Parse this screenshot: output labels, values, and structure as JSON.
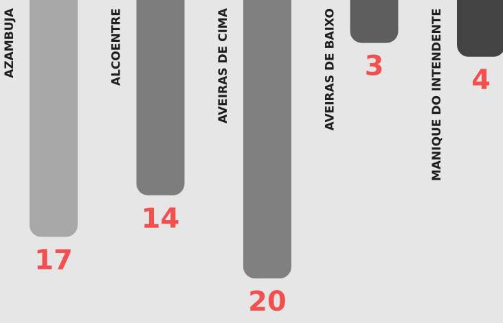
{
  "chart_data": {
    "type": "bar",
    "orientation": "vertical-hanging",
    "categories": [
      "AZAMBUJA",
      "ALCOENTRE",
      "AVEIRAS DE CIMA",
      "AVEIRAS DE BAIXO",
      "MANIQUE DO INTENDENTE"
    ],
    "values": [
      17,
      14,
      20,
      3,
      4
    ],
    "bar_colors": [
      "#a8a8a8",
      "#7d7d7d",
      "#808080",
      "#5e5e5e",
      "#434343"
    ],
    "value_color": "#f24f4f",
    "label_color": "#1e1e1e",
    "background": "#e6e6e6",
    "ylim": [
      0,
      20
    ],
    "grid": false,
    "legend": "none"
  }
}
